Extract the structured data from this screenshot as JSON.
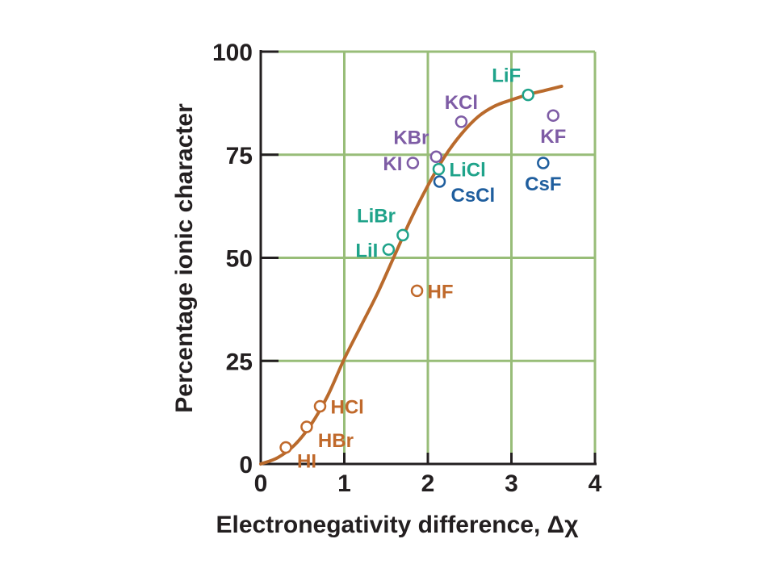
{
  "chart_data": {
    "type": "scatter",
    "title": "",
    "xlabel": "Electronegativity difference, Δχ",
    "ylabel": "Percentage ionic character",
    "xlim": [
      0,
      4
    ],
    "ylim": [
      0,
      100
    ],
    "x_ticks": [
      "0",
      "1",
      "2",
      "3",
      "4"
    ],
    "y_ticks": [
      "0",
      "25",
      "50",
      "75",
      "100"
    ],
    "grid": true,
    "colors": {
      "grid": "#98bd78",
      "axis": "#231f20",
      "curve": "#b96a2c",
      "hydrogen_halides": "#c0692b",
      "lithium_halides": "#1fa38a",
      "potassium_halides": "#7e5ca5",
      "cesium_halides": "#1f5e9e"
    },
    "curve": {
      "x": [
        0,
        0.2,
        0.4,
        0.6,
        0.8,
        1.0,
        1.2,
        1.4,
        1.6,
        1.8,
        2.0,
        2.2,
        2.4,
        2.6,
        2.8,
        3.0,
        3.2,
        3.4,
        3.6
      ],
      "y": [
        0,
        1.5,
        4.5,
        9.5,
        16.5,
        25.5,
        33.5,
        41.5,
        50.5,
        59.5,
        67.5,
        74.5,
        80,
        84.2,
        86.8,
        88.3,
        89.6,
        90.6,
        91.6
      ]
    },
    "points": [
      {
        "label": "HI",
        "x": 0.3,
        "y": 4,
        "group": "hydrogen_halides",
        "label_pos": "bottom-right"
      },
      {
        "label": "HBr",
        "x": 0.55,
        "y": 9,
        "group": "hydrogen_halides",
        "label_pos": "bottom-right"
      },
      {
        "label": "HCl",
        "x": 0.71,
        "y": 14,
        "group": "hydrogen_halides",
        "label_pos": "right"
      },
      {
        "label": "HF",
        "x": 1.87,
        "y": 42,
        "group": "hydrogen_halides",
        "label_pos": "right"
      },
      {
        "label": "LiI",
        "x": 1.53,
        "y": 52,
        "group": "lithium_halides",
        "label_pos": "left"
      },
      {
        "label": "LiBr",
        "x": 1.7,
        "y": 55.5,
        "group": "lithium_halides",
        "label_pos": "top-left"
      },
      {
        "label": "LiCl",
        "x": 2.13,
        "y": 71.5,
        "group": "lithium_halides",
        "label_pos": "right"
      },
      {
        "label": "LiF",
        "x": 3.2,
        "y": 89.5,
        "group": "lithium_halides",
        "label_pos": "top-left"
      },
      {
        "label": "KI",
        "x": 1.82,
        "y": 73,
        "group": "potassium_halides",
        "label_pos": "left"
      },
      {
        "label": "KBr",
        "x": 2.1,
        "y": 74.5,
        "group": "potassium_halides",
        "label_pos": "top-left"
      },
      {
        "label": "KCl",
        "x": 2.4,
        "y": 83,
        "group": "potassium_halides",
        "label_pos": "top"
      },
      {
        "label": "KF",
        "x": 3.5,
        "y": 84.5,
        "group": "potassium_halides",
        "label_pos": "bottom"
      },
      {
        "label": "CsCl",
        "x": 2.14,
        "y": 68.5,
        "group": "cesium_halides",
        "label_pos": "bottom-right"
      },
      {
        "label": "CsF",
        "x": 3.38,
        "y": 73,
        "group": "cesium_halides",
        "label_pos": "bottom"
      }
    ]
  }
}
